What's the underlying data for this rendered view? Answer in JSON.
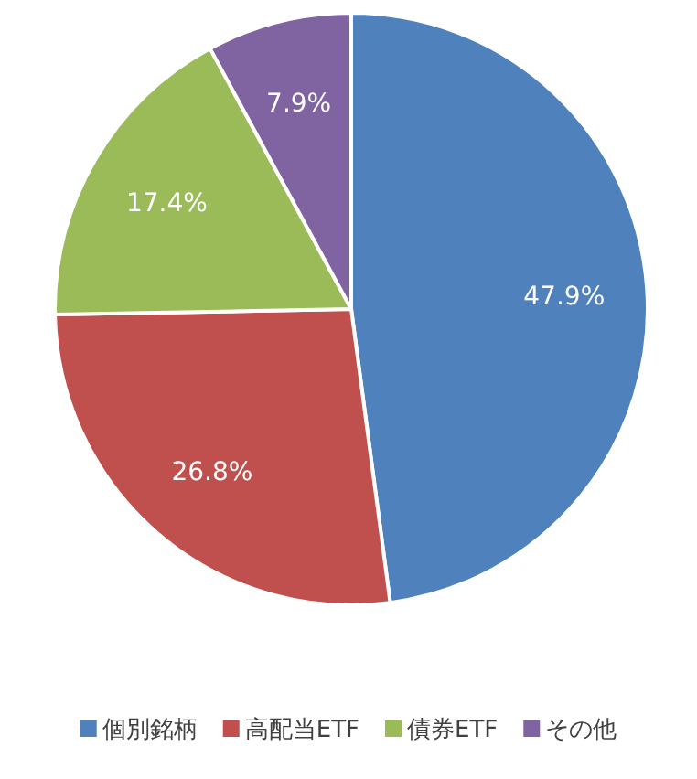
{
  "chart_data": {
    "type": "pie",
    "categories": [
      "個別銘柄",
      "高配当ETF",
      "債券ETF",
      "その他"
    ],
    "values": [
      47.9,
      26.8,
      17.4,
      7.9
    ],
    "colors": [
      "#4f81bd",
      "#c0504d",
      "#9bbb59",
      "#8064a2"
    ],
    "value_labels": [
      "47.9%",
      "26.8%",
      "17.4%",
      "7.9%"
    ],
    "legend": "bottom"
  }
}
